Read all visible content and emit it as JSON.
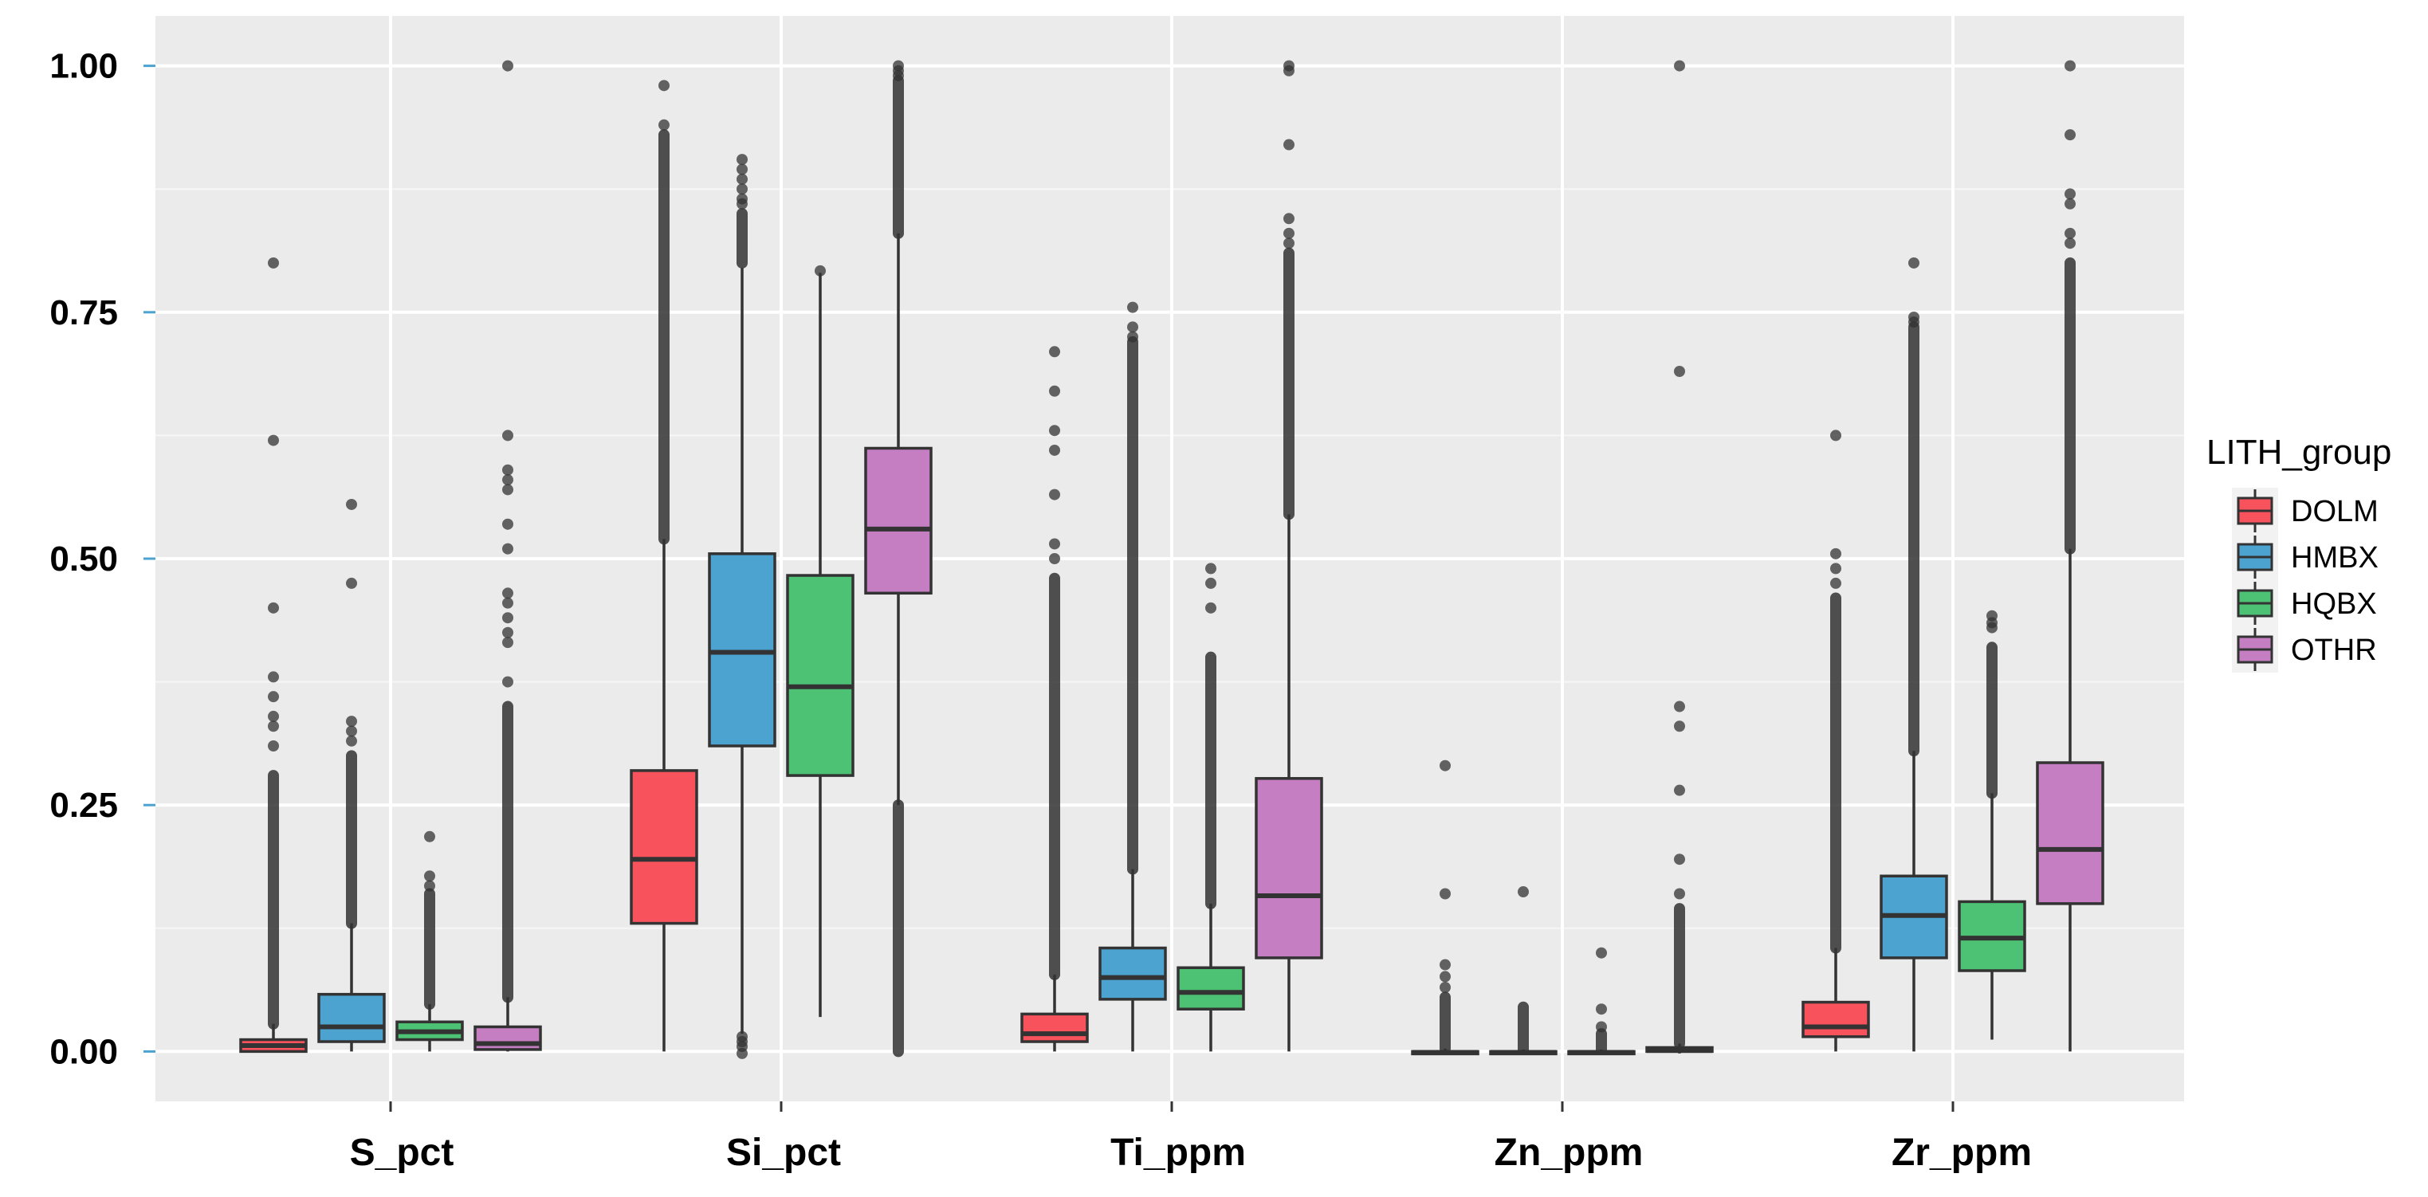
{
  "chart_data": {
    "type": "boxplot",
    "title": "",
    "xlabel": "",
    "ylabel": "",
    "ylim": [
      -0.05,
      1.05
    ],
    "y_ticks": [
      {
        "value": 0.0,
        "label": "0.00"
      },
      {
        "value": 0.25,
        "label": "0.25"
      },
      {
        "value": 0.5,
        "label": "0.50"
      },
      {
        "value": 0.75,
        "label": "0.75"
      },
      {
        "value": 1.0,
        "label": "1.00"
      }
    ],
    "grid": true,
    "legend": {
      "title": "LITH_group",
      "position": "right",
      "entries": [
        {
          "name": "DOLM",
          "color": "#F8525C"
        },
        {
          "name": "HMBX",
          "color": "#4DA3D0"
        },
        {
          "name": "HQBX",
          "color": "#4DC274"
        },
        {
          "name": "OTHR",
          "color": "#C57EC2"
        }
      ]
    },
    "categories": [
      "S_pct",
      "Si_pct",
      "Ti_ppm",
      "Zn_ppm",
      "Zr_ppm"
    ],
    "series": [
      {
        "name": "DOLM",
        "boxes": [
          {
            "q1": 0.0,
            "median": 0.006,
            "q3": 0.012,
            "whisker_low": 0.0,
            "whisker_high": 0.028,
            "outlier_band": [
              0.028,
              0.28
            ],
            "outliers": [
              0.8,
              0.62,
              0.45,
              0.38,
              0.36,
              0.34,
              0.33,
              0.31
            ]
          },
          {
            "q1": 0.13,
            "median": 0.195,
            "q3": 0.285,
            "whisker_low": 0.0,
            "whisker_high": 0.52,
            "outlier_band": [
              0.52,
              0.93
            ],
            "outliers": [
              0.98,
              0.94
            ]
          },
          {
            "q1": 0.01,
            "median": 0.018,
            "q3": 0.038,
            "whisker_low": 0.0,
            "whisker_high": 0.078,
            "outlier_band": [
              0.078,
              0.48
            ],
            "outliers": [
              0.71,
              0.67,
              0.63,
              0.61,
              0.565,
              0.515,
              0.5
            ]
          },
          {
            "q1": -0.002,
            "median": -0.001,
            "q3": 0.0,
            "whisker_low": -0.002,
            "whisker_high": 0.003,
            "outlier_band": [
              0.003,
              0.055
            ],
            "outliers": [
              0.29,
              0.16,
              0.088,
              0.076,
              0.065
            ]
          },
          {
            "q1": 0.015,
            "median": 0.025,
            "q3": 0.05,
            "whisker_low": 0.0,
            "whisker_high": 0.105,
            "outlier_band": [
              0.105,
              0.46
            ],
            "outliers": [
              0.625,
              0.505,
              0.49,
              0.475
            ]
          }
        ]
      },
      {
        "name": "HMBX",
        "boxes": [
          {
            "q1": 0.01,
            "median": 0.025,
            "q3": 0.058,
            "whisker_low": 0.0,
            "whisker_high": 0.13,
            "outlier_band": [
              0.13,
              0.3
            ],
            "outliers": [
              0.555,
              0.475,
              0.335,
              0.325,
              0.315
            ]
          },
          {
            "q1": 0.31,
            "median": 0.405,
            "q3": 0.505,
            "whisker_low": 0.018,
            "whisker_high": 0.795,
            "outlier_band": [
              0.8,
              0.85
            ],
            "outliers": [
              0.905,
              0.895,
              0.885,
              0.875,
              0.865,
              0.86,
              -0.002,
              0.005,
              0.01,
              0.015
            ]
          },
          {
            "q1": 0.053,
            "median": 0.075,
            "q3": 0.105,
            "whisker_low": 0.0,
            "whisker_high": 0.185,
            "outlier_band": [
              0.185,
              0.72
            ],
            "outliers": [
              0.755,
              0.735,
              0.725
            ]
          },
          {
            "q1": -0.002,
            "median": -0.001,
            "q3": 0.0,
            "whisker_low": -0.002,
            "whisker_high": 0.002,
            "outlier_band": [
              0.002,
              0.045
            ],
            "outliers": [
              0.162
            ]
          },
          {
            "q1": 0.095,
            "median": 0.138,
            "q3": 0.178,
            "whisker_low": 0.0,
            "whisker_high": 0.305,
            "outlier_band": [
              0.305,
              0.735
            ],
            "outliers": [
              0.8,
              0.745,
              0.74
            ]
          }
        ]
      },
      {
        "name": "HQBX",
        "boxes": [
          {
            "q1": 0.012,
            "median": 0.02,
            "q3": 0.03,
            "whisker_low": 0.0,
            "whisker_high": 0.048,
            "outlier_band": [
              0.048,
              0.16
            ],
            "outliers": [
              0.218,
              0.178,
              0.168
            ]
          },
          {
            "q1": 0.28,
            "median": 0.37,
            "q3": 0.483,
            "whisker_low": 0.035,
            "whisker_high": 0.79,
            "outlier_band": [
              0.79,
              0.79
            ],
            "outliers": [
              0.792
            ]
          },
          {
            "q1": 0.043,
            "median": 0.06,
            "q3": 0.085,
            "whisker_low": 0.0,
            "whisker_high": 0.15,
            "outlier_band": [
              0.15,
              0.4
            ],
            "outliers": [
              0.49,
              0.475,
              0.45
            ]
          },
          {
            "q1": -0.002,
            "median": -0.001,
            "q3": 0.0,
            "whisker_low": -0.002,
            "whisker_high": 0.002,
            "outlier_band": [
              0.002,
              0.018
            ],
            "outliers": [
              0.1,
              0.043,
              0.025
            ]
          },
          {
            "q1": 0.082,
            "median": 0.115,
            "q3": 0.152,
            "whisker_low": 0.012,
            "whisker_high": 0.262,
            "outlier_band": [
              0.262,
              0.41
            ],
            "outliers": [
              0.442,
              0.435,
              0.43
            ]
          }
        ]
      },
      {
        "name": "OTHR",
        "boxes": [
          {
            "q1": 0.002,
            "median": 0.008,
            "q3": 0.025,
            "whisker_low": 0.0,
            "whisker_high": 0.055,
            "outlier_band": [
              0.055,
              0.35
            ],
            "outliers": [
              1.0,
              0.625,
              0.59,
              0.58,
              0.57,
              0.535,
              0.51,
              0.465,
              0.455,
              0.44,
              0.425,
              0.415,
              0.375
            ]
          },
          {
            "q1": 0.465,
            "median": 0.53,
            "q3": 0.612,
            "whisker_low": 0.25,
            "whisker_high": 0.83,
            "outlier_band": [
              0.83,
              0.985
            ],
            "outliers": [
              1.0,
              0.995,
              0.99
            ],
            "lower_band": [
              0.0,
              0.25
            ]
          },
          {
            "q1": 0.095,
            "median": 0.158,
            "q3": 0.277,
            "whisker_low": 0.0,
            "whisker_high": 0.545,
            "outlier_band": [
              0.545,
              0.81
            ],
            "outliers": [
              1.0,
              0.995,
              0.92,
              0.845,
              0.83,
              0.82
            ]
          },
          {
            "q1": 0.0,
            "median": 0.001,
            "q3": 0.004,
            "whisker_low": -0.002,
            "whisker_high": 0.008,
            "outlier_band": [
              0.008,
              0.145
            ],
            "outliers": [
              1.0,
              0.69,
              0.35,
              0.33,
              0.265,
              0.195,
              0.16
            ]
          },
          {
            "q1": 0.15,
            "median": 0.205,
            "q3": 0.293,
            "whisker_low": 0.0,
            "whisker_high": 0.51,
            "outlier_band": [
              0.51,
              0.8
            ],
            "outliers": [
              1.0,
              0.93,
              0.87,
              0.86,
              0.83,
              0.82
            ]
          }
        ]
      }
    ]
  }
}
